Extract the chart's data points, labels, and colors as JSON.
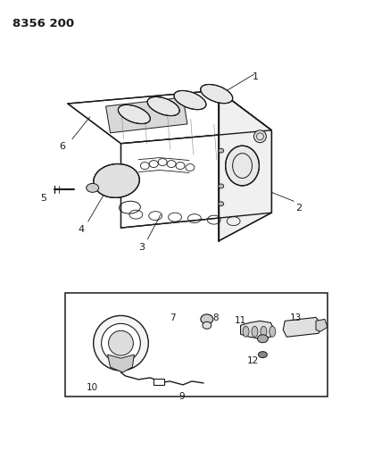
{
  "title": "8356 200",
  "background_color": "#ffffff",
  "line_color": "#1a1a1a",
  "fig_width": 4.1,
  "fig_height": 5.33,
  "dpi": 100
}
